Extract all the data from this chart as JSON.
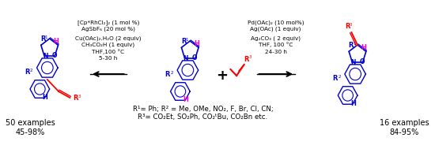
{
  "background_color": "#ffffff",
  "fig_width": 5.5,
  "fig_height": 1.84,
  "dpi": 100,
  "left_examples": "50 examples\n45-98%",
  "right_examples": "16 examples\n84-95%",
  "left_cond1": "[Cp*RhCl₂]₂ (1 mol %)",
  "left_cond2": "AgSbF₆ (20 mol %)",
  "left_cond3": "Cu(OAc)₂.H₂O (2 equiv)",
  "left_cond4": "CH₃CO₂H (1 equiv)",
  "left_cond5": "THF,100 °C",
  "left_cond6": "5-30 h",
  "right_cond1": "Pd(OAc)₂ (10 mol%)",
  "right_cond2": "Ag(OAc) (1 equiv)",
  "right_cond3": "Ag₂CO₃ ( 2 equiv)",
  "right_cond4": "THF, 100 °C",
  "right_cond5": "24-30 h",
  "bottom_line1": "R¹= Ph; R² = Me, OMe, NO₂, F, Br, Cl, CN;",
  "bottom_line2": "R³= CO₂Et, SO₂Ph, CO₂ᵗBu, CO₂Bn etc.",
  "blue": "#0000cd",
  "red": "#ff0000",
  "magenta": "#ff00cc",
  "black": "#000000"
}
